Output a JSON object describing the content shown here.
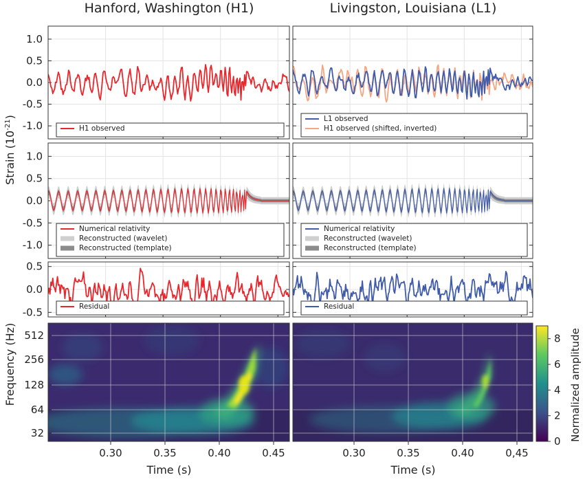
{
  "figure": {
    "column_titles": [
      "Hanford, Washington (H1)",
      "Livingston, Louisiana (L1)"
    ],
    "strain_ylabel": "Strain (10",
    "strain_ylabel_exp": "-21",
    "strain_ylabel_close": ")",
    "freq_ylabel": "Frequency (Hz)",
    "colorbar_label": "Normalized amplitude",
    "colorbar_ticks": [
      "0",
      "2",
      "4",
      "6",
      "8"
    ],
    "colormap": [
      "#440154",
      "#3b528b",
      "#21908d",
      "#5dc962",
      "#fde725"
    ]
  },
  "chart_data": [
    {
      "id": "h1-observed",
      "type": "line",
      "xlabel": "Time (s)",
      "xlim": [
        0.25,
        0.46
      ],
      "ylim": [
        -1.3,
        1.3
      ],
      "yticks": [
        "1.0",
        "0.5",
        "0.0",
        "-0.5",
        "-1.0"
      ],
      "series": [
        {
          "name": "H1 observed",
          "color": "#e8262b"
        }
      ],
      "legend": "bottom"
    },
    {
      "id": "l1-observed",
      "type": "line",
      "xlabel": "Time (s)",
      "xlim": [
        0.25,
        0.46
      ],
      "ylim": [
        -1.3,
        1.3
      ],
      "series": [
        {
          "name": "L1 observed",
          "color": "#3f5ba9"
        },
        {
          "name": "H1 observed (shifted, inverted)",
          "color": "#f4a582"
        }
      ],
      "legend": "bottom"
    },
    {
      "id": "h1-reconstructed",
      "type": "line",
      "xlim": [
        0.25,
        0.46
      ],
      "ylim": [
        -1.3,
        1.3
      ],
      "yticks": [
        "1.0",
        "0.5",
        "0.0",
        "-0.5",
        "-1.0"
      ],
      "series": [
        {
          "name": "Numerical relativity",
          "color": "#e8262b"
        },
        {
          "name": "Reconstructed (wavelet)",
          "color": "#cfcfcf"
        },
        {
          "name": "Reconstructed (template)",
          "color": "#8c8c8c"
        }
      ],
      "legend": "bottom"
    },
    {
      "id": "l1-reconstructed",
      "type": "line",
      "xlim": [
        0.25,
        0.46
      ],
      "ylim": [
        -1.3,
        1.3
      ],
      "series": [
        {
          "name": "Numerical relativity",
          "color": "#3f5ba9"
        },
        {
          "name": "Reconstructed (wavelet)",
          "color": "#cfcfcf"
        },
        {
          "name": "Reconstructed (template)",
          "color": "#8c8c8c"
        }
      ],
      "legend": "bottom"
    },
    {
      "id": "h1-residual",
      "type": "line",
      "xlim": [
        0.25,
        0.46
      ],
      "ylim": [
        -0.6,
        0.6
      ],
      "yticks": [
        "0.5",
        "0.0",
        "-0.5"
      ],
      "series": [
        {
          "name": "Residual",
          "color": "#e8262b"
        }
      ],
      "legend": "bottom"
    },
    {
      "id": "l1-residual",
      "type": "line",
      "xlim": [
        0.25,
        0.46
      ],
      "ylim": [
        -0.6,
        0.6
      ],
      "series": [
        {
          "name": "Residual",
          "color": "#3f5ba9"
        }
      ],
      "legend": "bottom"
    },
    {
      "id": "h1-spectrogram",
      "type": "heatmap",
      "xlabel": "Time (s)",
      "ylabel": "Frequency (Hz)",
      "xlim": [
        0.25,
        0.46
      ],
      "yscale": "log2",
      "xticks": [
        "0.30",
        "0.35",
        "0.40",
        "0.45"
      ],
      "yticks": [
        "512",
        "256",
        "128",
        "64",
        "32"
      ],
      "zlim": [
        0,
        9
      ]
    },
    {
      "id": "l1-spectrogram",
      "type": "heatmap",
      "xlabel": "Time (s)",
      "xlim": [
        0.25,
        0.46
      ],
      "yscale": "log2",
      "xticks": [
        "0.30",
        "0.35",
        "0.40",
        "0,45"
      ],
      "zlim": [
        0,
        9
      ]
    }
  ]
}
